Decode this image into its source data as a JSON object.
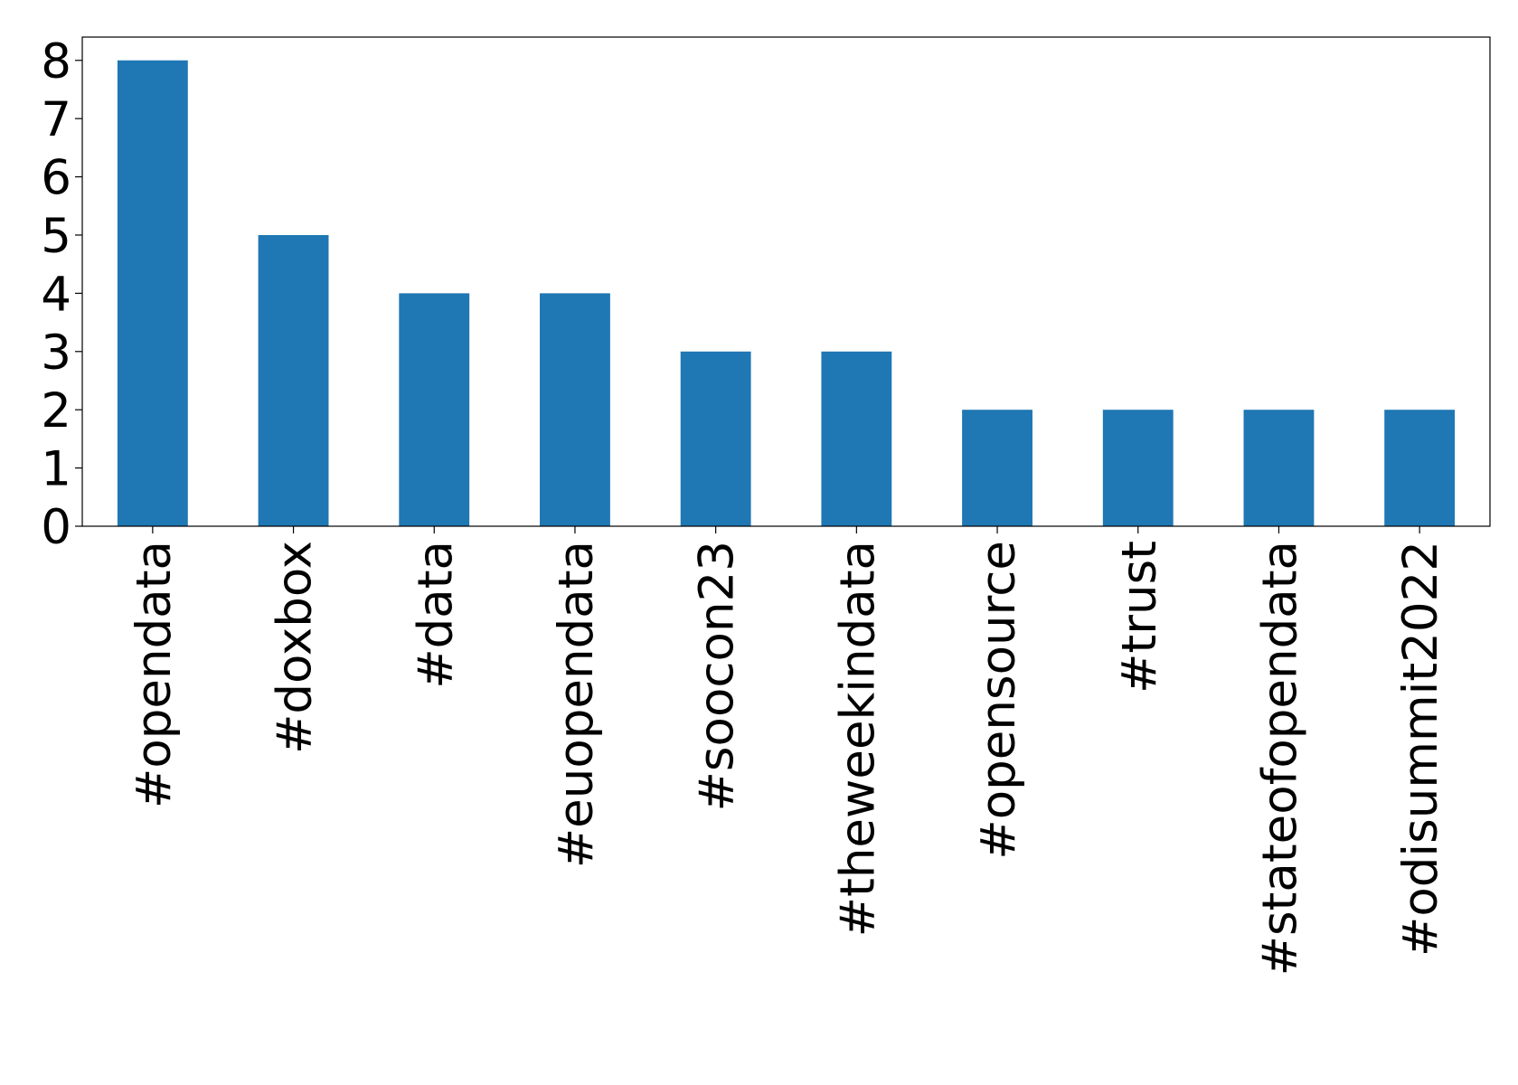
{
  "chart_data": {
    "type": "bar",
    "categories": [
      "#opendata",
      "#doxbox",
      "#data",
      "#euopendata",
      "#soocon23",
      "#theweekindata",
      "#opensource",
      "#trust",
      "#stateofopendata",
      "#odisummit2022"
    ],
    "values": [
      8,
      5,
      4,
      4,
      3,
      3,
      2,
      2,
      2,
      2
    ],
    "color": "#1f77b4",
    "ylim": [
      0,
      8.4
    ],
    "yticks": [
      0,
      1,
      2,
      3,
      4,
      5,
      6,
      7,
      8
    ],
    "grid": false
  }
}
